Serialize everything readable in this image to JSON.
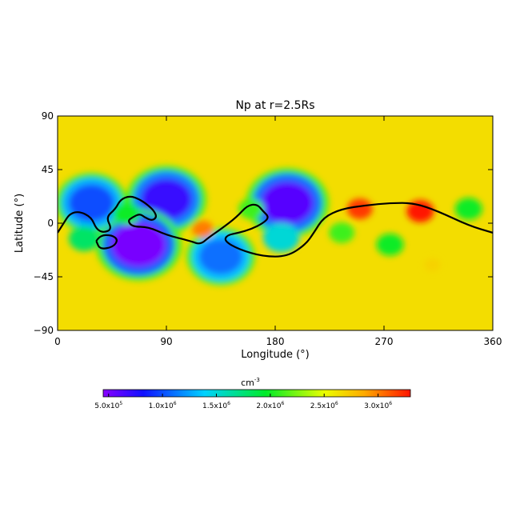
{
  "chart_data": {
    "type": "heatmap",
    "title": "Np at r=2.5Rs",
    "xlabel": "Longitude (°)",
    "ylabel": "Latitude (°)",
    "xlim": [
      0,
      360
    ],
    "ylim": [
      -90,
      90
    ],
    "xticks": [
      0,
      90,
      180,
      270,
      360
    ],
    "yticks": [
      -90,
      -45,
      0,
      45,
      90
    ],
    "grid": false,
    "colorbar": {
      "unit_base": "cm",
      "unit_exponent": "-3",
      "range": [
        450000,
        3300000
      ],
      "ticks": [
        {
          "value": 500000,
          "mantissa": "5.0x10",
          "exponent": "5"
        },
        {
          "value": 1000000,
          "mantissa": "1.0x10",
          "exponent": "6"
        },
        {
          "value": 1500000,
          "mantissa": "1.5x10",
          "exponent": "6"
        },
        {
          "value": 2000000,
          "mantissa": "2.0x10",
          "exponent": "6"
        },
        {
          "value": 2500000,
          "mantissa": "2.5x10",
          "exponent": "6"
        },
        {
          "value": 3000000,
          "mantissa": "3.0x10",
          "exponent": "6"
        }
      ],
      "placement": "bottom"
    },
    "background_value": 2650000,
    "features": [
      {
        "lon": 90,
        "lat": 20,
        "value": 700000
      },
      {
        "lon": 67,
        "lat": -18,
        "value": 500000
      },
      {
        "lon": 190,
        "lat": 17,
        "value": 600000
      },
      {
        "lon": 135,
        "lat": -28,
        "value": 1100000
      },
      {
        "lon": 28,
        "lat": 17,
        "value": 1000000
      },
      {
        "lon": 185,
        "lat": -12,
        "value": 1500000
      },
      {
        "lon": 275,
        "lat": -18,
        "value": 2000000
      },
      {
        "lon": 22,
        "lat": -13,
        "value": 1800000
      },
      {
        "lon": 340,
        "lat": 12,
        "value": 2000000
      },
      {
        "lon": 160,
        "lat": 12,
        "value": 2100000
      },
      {
        "lon": 235,
        "lat": -8,
        "value": 2100000
      },
      {
        "lon": 57,
        "lat": 8,
        "value": 2000000
      },
      {
        "lon": 300,
        "lat": 10,
        "value": 3300000
      },
      {
        "lon": 250,
        "lat": 12,
        "value": 3200000
      },
      {
        "lon": 120,
        "lat": -5,
        "value": 3000000
      },
      {
        "lon": 310,
        "lat": -35,
        "value": 2700000
      }
    ],
    "neutral_line": [
      {
        "name": "main",
        "points": [
          [
            0,
            -8
          ],
          [
            5,
            0
          ],
          [
            10,
            8
          ],
          [
            18,
            10
          ],
          [
            28,
            5
          ],
          [
            32,
            -5
          ],
          [
            38,
            -8
          ],
          [
            45,
            -5
          ],
          [
            40,
            5
          ],
          [
            48,
            12
          ],
          [
            52,
            20
          ],
          [
            60,
            23
          ],
          [
            68,
            20
          ],
          [
            75,
            15
          ],
          [
            80,
            10
          ],
          [
            82,
            5
          ],
          [
            78,
            2
          ],
          [
            72,
            5
          ],
          [
            68,
            8
          ],
          [
            62,
            5
          ],
          [
            58,
            2
          ],
          [
            62,
            -3
          ],
          [
            75,
            -3
          ],
          [
            90,
            -10
          ],
          [
            110,
            -15
          ],
          [
            118,
            -18
          ],
          [
            125,
            -12
          ],
          [
            135,
            -5
          ],
          [
            148,
            5
          ],
          [
            157,
            15
          ],
          [
            165,
            16
          ],
          [
            170,
            10
          ],
          [
            175,
            5
          ],
          [
            170,
            0
          ],
          [
            160,
            -5
          ],
          [
            150,
            -8
          ],
          [
            140,
            -10
          ],
          [
            138,
            -15
          ],
          [
            150,
            -22
          ],
          [
            170,
            -28
          ],
          [
            190,
            -28
          ],
          [
            205,
            -18
          ],
          [
            212,
            -8
          ],
          [
            220,
            5
          ],
          [
            235,
            12
          ],
          [
            255,
            15
          ],
          [
            275,
            17
          ],
          [
            295,
            17
          ],
          [
            315,
            10
          ],
          [
            340,
            -2
          ],
          [
            360,
            -8
          ]
        ]
      },
      {
        "name": "loop",
        "points": [
          [
            32,
            -15
          ],
          [
            35,
            -10
          ],
          [
            45,
            -10
          ],
          [
            50,
            -14
          ],
          [
            46,
            -20
          ],
          [
            35,
            -22
          ],
          [
            32,
            -15
          ]
        ]
      }
    ]
  }
}
